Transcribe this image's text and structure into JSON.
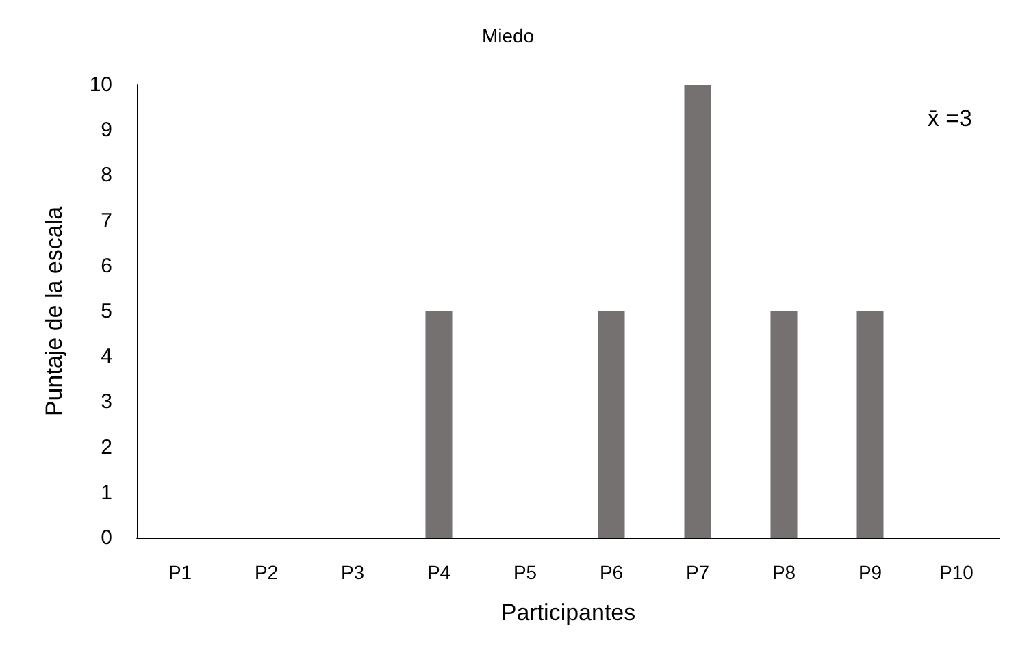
{
  "chart_data": {
    "type": "bar",
    "title": "Miedo",
    "xlabel": "Participantes",
    "ylabel": "Puntaje de la escala",
    "categories": [
      "P1",
      "P2",
      "P3",
      "P4",
      "P5",
      "P6",
      "P7",
      "P8",
      "P9",
      "P10"
    ],
    "values": [
      0,
      0,
      0,
      5,
      0,
      5,
      10,
      5,
      5,
      0
    ],
    "color": "#767171",
    "ylim": [
      0,
      10
    ],
    "yticks": [
      0,
      1,
      2,
      3,
      4,
      5,
      6,
      7,
      8,
      9,
      10
    ],
    "grid": false,
    "annotations": [
      "x̄ =3"
    ]
  }
}
